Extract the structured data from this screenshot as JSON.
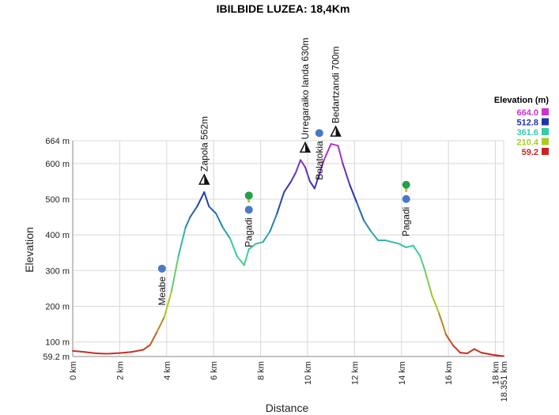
{
  "chart_data": {
    "type": "line",
    "title": "IBILBIDE LUZEA: 18,4Km",
    "xlabel": "Distance",
    "ylabel": "Elevation",
    "xlim": [
      0,
      18.351
    ],
    "ylim": [
      59.2,
      664
    ],
    "x_ticks": [
      {
        "value": 0,
        "label": "0 km"
      },
      {
        "value": 2,
        "label": "2 km"
      },
      {
        "value": 4,
        "label": "4 km"
      },
      {
        "value": 6,
        "label": "6 km"
      },
      {
        "value": 8,
        "label": "8 km"
      },
      {
        "value": 10,
        "label": "10 km"
      },
      {
        "value": 12,
        "label": "12 km"
      },
      {
        "value": 14,
        "label": "14 km"
      },
      {
        "value": 16,
        "label": "16 km"
      },
      {
        "value": 18,
        "label": "18 km"
      },
      {
        "value": 18.351,
        "label": "18.351 km"
      }
    ],
    "y_ticks": [
      {
        "value": 59.2,
        "label": "59.2 m"
      },
      {
        "value": 100,
        "label": "100 m"
      },
      {
        "value": 200,
        "label": "200 m"
      },
      {
        "value": 300,
        "label": "300 m"
      },
      {
        "value": 400,
        "label": "400 m"
      },
      {
        "value": 500,
        "label": "500 m"
      },
      {
        "value": 600,
        "label": "600 m"
      },
      {
        "value": 664,
        "label": "664 m"
      }
    ],
    "grid": true,
    "legend": {
      "title": "Elevation (m)",
      "placement": "top-right",
      "entries": [
        {
          "label": "664.0",
          "color": "#cc33cc"
        },
        {
          "label": "512.8",
          "color": "#2233aa"
        },
        {
          "label": "361.6",
          "color": "#33ccaa"
        },
        {
          "label": "210.4",
          "color": "#aacc22"
        },
        {
          "label": "59.2",
          "color": "#cc2222"
        }
      ]
    },
    "series": [
      {
        "x": [
          0,
          0.5,
          1,
          1.5,
          2,
          2.5,
          3,
          3.3,
          3.6,
          3.9,
          4.2,
          4.5,
          4.8,
          5.0,
          5.3,
          5.6,
          5.8,
          6.1,
          6.4,
          6.7,
          7.0,
          7.3,
          7.5,
          7.8,
          8.1,
          8.4,
          8.7,
          9.0,
          9.3,
          9.5,
          9.7,
          9.9,
          10.1,
          10.3,
          10.5,
          10.7,
          11.0,
          11.3,
          11.5,
          11.8,
          12.1,
          12.4,
          12.7,
          13.0,
          13.3,
          13.6,
          13.9,
          14.2,
          14.5,
          14.8,
          15.0,
          15.3,
          15.6,
          15.9,
          16.2,
          16.5,
          16.8,
          17.1,
          17.4,
          17.8,
          18.1,
          18.351
        ],
        "y": [
          75,
          72,
          68,
          67,
          69,
          72,
          78,
          92,
          130,
          170,
          240,
          340,
          420,
          450,
          480,
          520,
          480,
          460,
          420,
          390,
          340,
          315,
          360,
          375,
          380,
          410,
          460,
          520,
          550,
          575,
          610,
          590,
          550,
          530,
          570,
          610,
          655,
          650,
          600,
          540,
          490,
          440,
          410,
          385,
          385,
          380,
          375,
          365,
          370,
          340,
          300,
          230,
          180,
          120,
          90,
          70,
          68,
          80,
          70,
          65,
          62,
          60
        ]
      }
    ],
    "annotations": [
      {
        "label": "Zapola 562m",
        "x": 5.6,
        "y": 520,
        "icon": "peak-icon"
      },
      {
        "label": "Urregaraiko landa 630m",
        "x": 9.9,
        "y": 610,
        "icon": "peak-icon"
      },
      {
        "label": "Bedartzandi 700m",
        "x": 11.2,
        "y": 655,
        "icon": "peak-icon"
      },
      {
        "label": "Meabe",
        "x": 3.8,
        "y": 270,
        "icon": "water-drop-icon"
      },
      {
        "label": "Pagadi",
        "x": 7.5,
        "y": 475,
        "icon": "tree-icon"
      },
      {
        "label": "Bolatokia",
        "x": 10.5,
        "y": 650,
        "icon": "water-drop-icon"
      },
      {
        "label": "Pagadi",
        "x": 14.2,
        "y": 505,
        "icon": "tree-icon"
      }
    ]
  }
}
